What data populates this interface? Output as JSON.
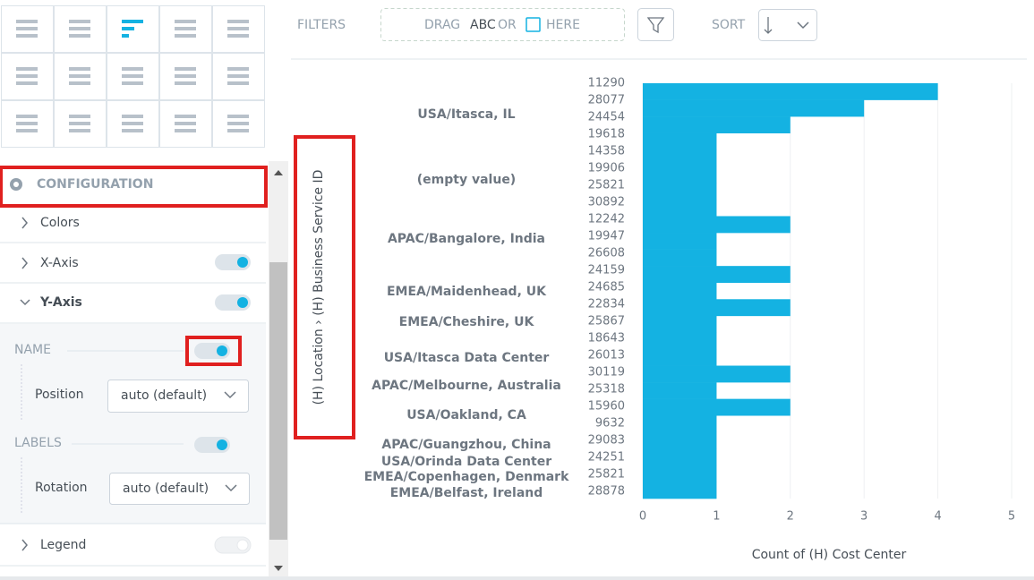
{
  "toolbar": {
    "filters": "FILTERS",
    "drag": "DRAG",
    "abc": "ABC",
    "or": "OR",
    "here": "HERE",
    "sort": "SORT"
  },
  "sidebar": {
    "configuration": "CONFIGURATION",
    "colors": "Colors",
    "x_axis": "X-Axis",
    "y_axis": "Y-Axis",
    "name": "NAME",
    "position": "Position",
    "position_value": "auto (default)",
    "labels": "LABELS",
    "rotation": "Rotation",
    "rotation_value": "auto (default)",
    "legend": "Legend"
  },
  "chart_data": {
    "type": "bar",
    "orientation": "horizontal",
    "y_title": "(H) Location › (H) Business Service ID",
    "x_title": "Count of (H) Cost Center",
    "groups": [
      "USA/Itasca, IL",
      "(empty value)",
      "APAC/Bangalore, India",
      "EMEA/Maidenhead, UK",
      "EMEA/Cheshire, UK",
      "USA/Itasca Data Center",
      "APAC/Melbourne, Australia",
      "USA/Oakland, CA",
      "APAC/Guangzhou, China",
      "USA/Orinda Data Center",
      "EMEA/Copenhagen, Denmark",
      "EMEA/Belfast, Ireland"
    ],
    "categories": [
      "11290",
      "28077",
      "24454",
      "19618",
      "14358",
      "19906",
      "25821",
      "30892",
      "12242",
      "19947",
      "26608",
      "24159",
      "24685",
      "22834",
      "25867",
      "18643",
      "26013",
      "30119",
      "25318",
      "15960",
      "9632",
      "29083",
      "24251",
      "25821",
      "28878"
    ],
    "values": [
      4,
      3,
      2,
      1,
      1,
      1,
      1,
      1,
      2,
      1,
      1,
      2,
      1,
      2,
      1,
      1,
      1,
      2,
      1,
      2,
      1,
      1,
      1,
      1,
      1
    ],
    "color": "#14b2e2",
    "xlim": [
      0,
      5
    ],
    "xticks": [
      0,
      1,
      2,
      3,
      4,
      5
    ],
    "grid": true
  }
}
